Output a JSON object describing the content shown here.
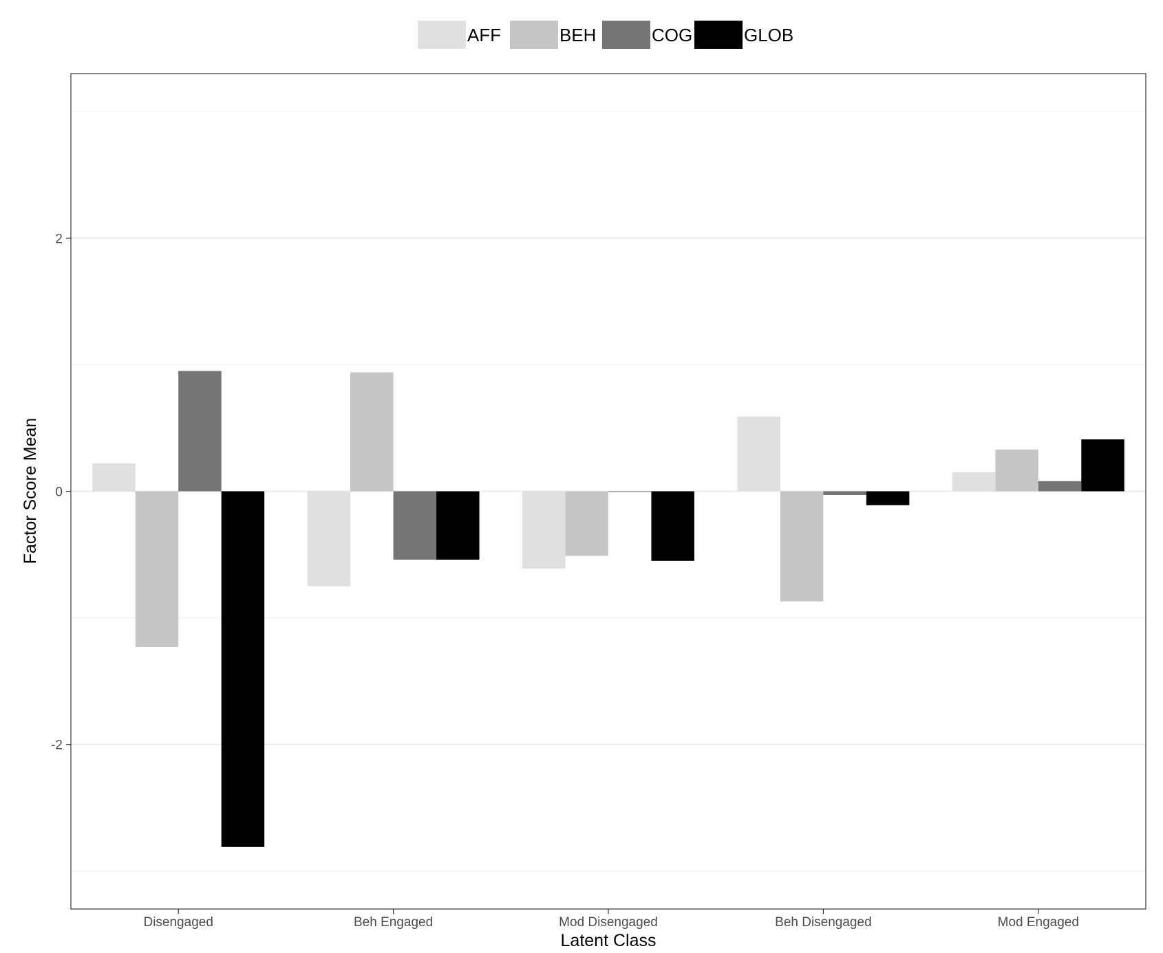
{
  "chart_data": {
    "type": "bar",
    "title": "",
    "xlabel": "Latent Class",
    "ylabel": "Factor Score Mean",
    "categories": [
      "Disengaged",
      "Beh Engaged",
      "Mod Disengaged",
      "Beh Disengaged",
      "Mod Engaged"
    ],
    "series": [
      {
        "name": "AFF",
        "color": "#e0e0e0",
        "values": [
          0.22,
          -0.75,
          -0.61,
          0.59,
          0.15
        ]
      },
      {
        "name": "BEH",
        "color": "#c6c6c6",
        "values": [
          -1.23,
          0.94,
          -0.51,
          -0.87,
          0.33
        ]
      },
      {
        "name": "COG",
        "color": "#757575",
        "values": [
          0.95,
          -0.54,
          0.0,
          -0.03,
          0.08
        ]
      },
      {
        "name": "GLOB",
        "color": "#000000",
        "values": [
          -2.81,
          -0.54,
          -0.55,
          -0.11,
          0.41
        ]
      }
    ],
    "ylim": [
      -3.3,
      3.3
    ],
    "yticks": [
      -2,
      0,
      2
    ],
    "ytick_labels": [
      "-2",
      "0",
      "2"
    ],
    "grid": true,
    "legend_position": "top"
  }
}
